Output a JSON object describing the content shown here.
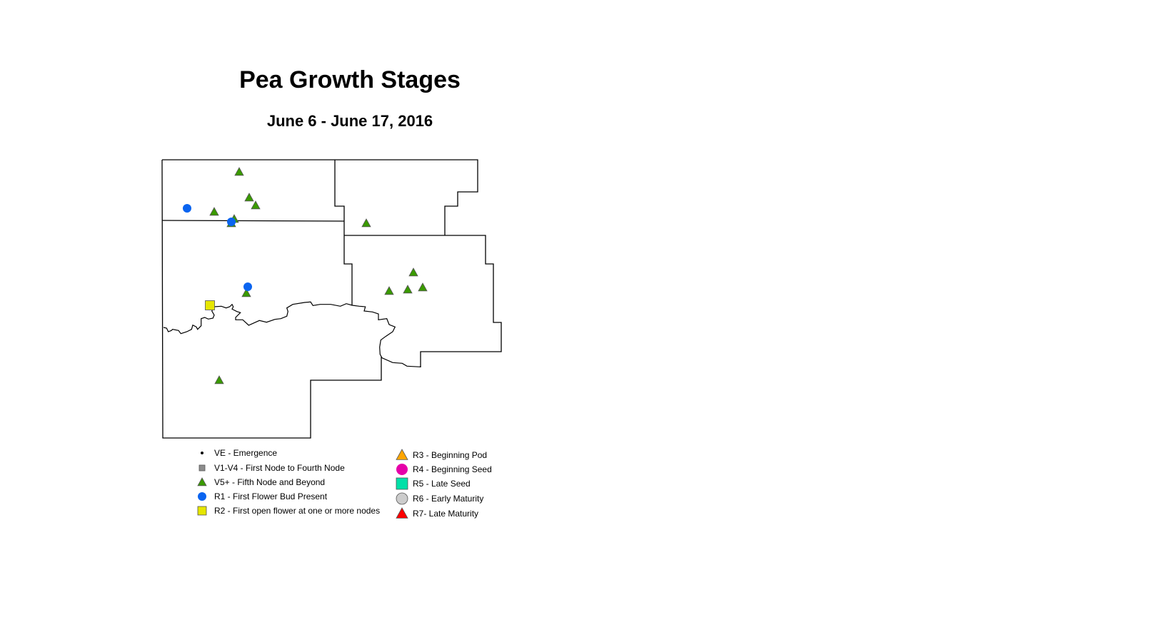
{
  "title": "Pea Growth Stages",
  "subtitle": "June 6 - June 17, 2016",
  "legend": [
    {
      "stage": "VE",
      "label": "VE - Emergence",
      "symbol": "dot",
      "color": "#000000"
    },
    {
      "stage": "V1-V4",
      "label": "V1-V4 - First Node to Fourth Node",
      "symbol": "square-small",
      "color": "#8c8c8c"
    },
    {
      "stage": "V5+",
      "label": "V5+ - Fifth Node and Beyond",
      "symbol": "triangle",
      "color": "#3a9a00"
    },
    {
      "stage": "R1",
      "label": "R1 - First Flower Bud Present",
      "symbol": "circle",
      "color": "#0a64f0"
    },
    {
      "stage": "R2",
      "label": "R2 - First open flower at one or more nodes",
      "symbol": "square",
      "color": "#e6e600"
    },
    {
      "stage": "R3",
      "label": "R3 - Beginning Pod",
      "symbol": "triangle",
      "color": "#ffa500"
    },
    {
      "stage": "R4",
      "label": "R4 - Beginning Seed",
      "symbol": "circle",
      "color": "#e600a9"
    },
    {
      "stage": "R5",
      "label": "R5 - Late Seed",
      "symbol": "square",
      "color": "#00e0a8"
    },
    {
      "stage": "R6",
      "label": "R6 - Early Maturity",
      "symbol": "circle",
      "color": "#cccccc"
    },
    {
      "stage": "R7",
      "label": "R7- Late Maturity",
      "symbol": "triangle",
      "color": "#ff0000"
    }
  ],
  "sites": [
    {
      "stage": "V5+"
    },
    {
      "stage": "V5+"
    },
    {
      "stage": "V5+"
    },
    {
      "stage": "V5+"
    },
    {
      "stage": "V5+"
    },
    {
      "stage": "V5+"
    },
    {
      "stage": "V5+"
    },
    {
      "stage": "V5+"
    },
    {
      "stage": "V5+"
    },
    {
      "stage": "V5+"
    },
    {
      "stage": "V5+"
    },
    {
      "stage": "V5+"
    },
    {
      "stage": "V5+"
    },
    {
      "stage": "R1"
    },
    {
      "stage": "R1"
    },
    {
      "stage": "R1"
    },
    {
      "stage": "R2"
    }
  ]
}
